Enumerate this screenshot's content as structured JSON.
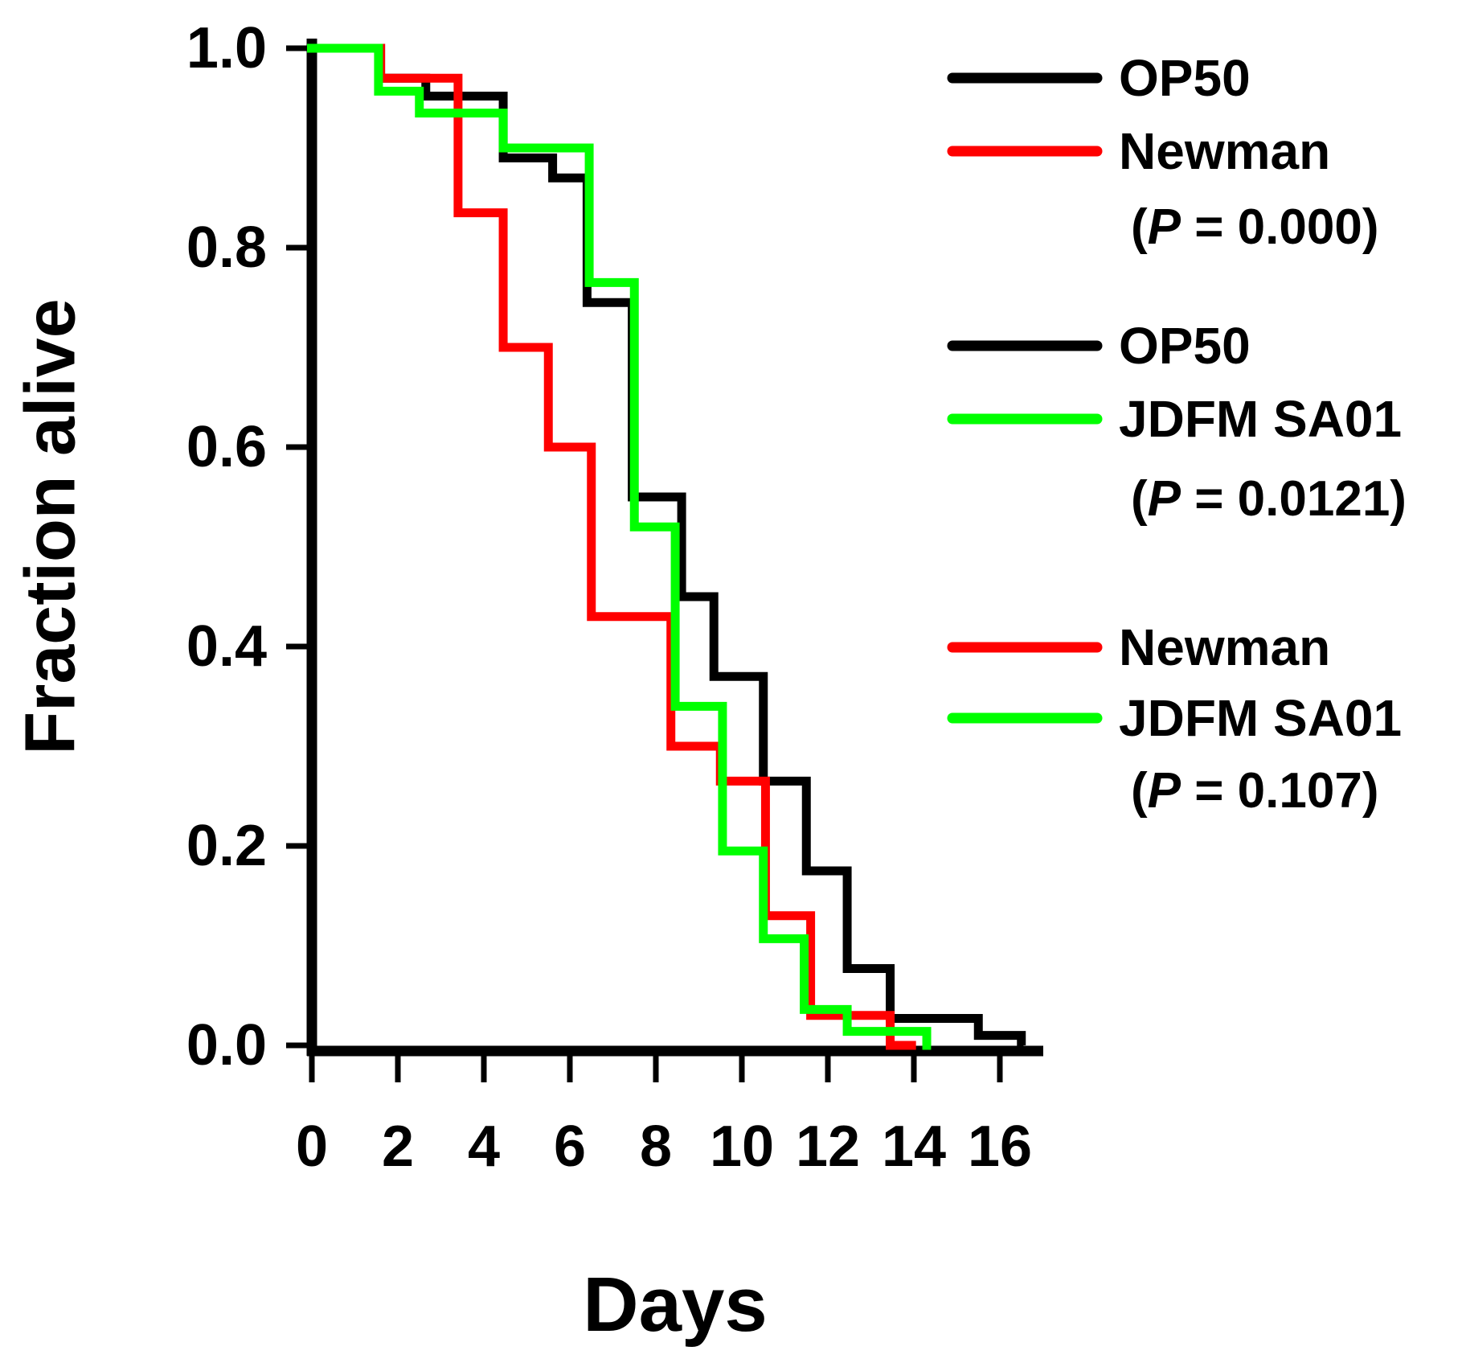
{
  "figure": {
    "background": "#ffffff"
  },
  "chart_data": {
    "type": "line",
    "subtype": "kaplan-meier-step-survival",
    "title": "",
    "xlabel": "Days",
    "ylabel": "Fraction alive",
    "xlim": [
      0,
      17
    ],
    "ylim": [
      0.0,
      1.0
    ],
    "grid": false,
    "legend_position": "right",
    "axis_color": "#000000",
    "x_ticks": [
      "0",
      "2",
      "4",
      "6",
      "8",
      "10",
      "12",
      "14",
      "16"
    ],
    "x_tick_values": [
      0,
      2,
      4,
      6,
      8,
      10,
      12,
      14,
      16
    ],
    "y_ticks": [
      "1.0",
      "0.8",
      "0.6",
      "0.4",
      "0.2",
      "0.0"
    ],
    "y_tick_values": [
      1.0,
      0.8,
      0.6,
      0.4,
      0.2,
      0.0
    ],
    "series": [
      {
        "name": "OP50",
        "color": "#000000",
        "end_day": 16.55,
        "steps": [
          [
            0,
            1.0
          ],
          [
            1.6,
            0.97
          ],
          [
            2.65,
            0.952
          ],
          [
            4.45,
            0.89
          ],
          [
            5.6,
            0.87
          ],
          [
            6.4,
            0.745
          ],
          [
            7.45,
            0.55
          ],
          [
            8.6,
            0.45
          ],
          [
            9.35,
            0.37
          ],
          [
            10.5,
            0.265
          ],
          [
            11.5,
            0.175
          ],
          [
            12.45,
            0.077
          ],
          [
            13.45,
            0.027
          ],
          [
            15.5,
            0.01
          ],
          [
            16.5,
            0.0
          ]
        ]
      },
      {
        "name": "Newman",
        "color": "#ff0000",
        "end_day": 14.05,
        "steps": [
          [
            0,
            1.0
          ],
          [
            1.6,
            0.97
          ],
          [
            3.4,
            0.835
          ],
          [
            4.45,
            0.7
          ],
          [
            5.5,
            0.6
          ],
          [
            6.5,
            0.43
          ],
          [
            8.35,
            0.3
          ],
          [
            9.5,
            0.265
          ],
          [
            10.55,
            0.13
          ],
          [
            11.6,
            0.03
          ],
          [
            13.45,
            0.0
          ]
        ]
      },
      {
        "name": "JDFM SA01",
        "color": "#00ff00",
        "end_day": 14.4,
        "steps": [
          [
            0,
            1.0
          ],
          [
            1.55,
            0.957
          ],
          [
            2.5,
            0.935
          ],
          [
            4.45,
            0.9
          ],
          [
            6.45,
            0.765
          ],
          [
            7.5,
            0.52
          ],
          [
            8.45,
            0.34
          ],
          [
            9.55,
            0.195
          ],
          [
            10.5,
            0.107
          ],
          [
            11.45,
            0.036
          ],
          [
            12.45,
            0.014
          ],
          [
            14.3,
            0.0
          ]
        ]
      }
    ],
    "legend": [
      {
        "entries": [
          {
            "label": "OP50",
            "color": "#000000"
          },
          {
            "label": "Newman",
            "color": "#ff0000"
          }
        ],
        "p_symbol": "P",
        "p_value": "0.000",
        "p_text": "(P = 0.000)"
      },
      {
        "entries": [
          {
            "label": "OP50",
            "color": "#000000"
          },
          {
            "label": "JDFM SA01",
            "color": "#00ff00"
          }
        ],
        "p_symbol": "P",
        "p_value": "0.0121",
        "p_text": "(P = 0.0121)"
      },
      {
        "entries": [
          {
            "label": "Newman",
            "color": "#ff0000"
          },
          {
            "label": "JDFM SA01",
            "color": "#00ff00"
          }
        ],
        "p_symbol": "P",
        "p_value": "0.107",
        "p_text": "(P = 0.107)"
      }
    ]
  }
}
